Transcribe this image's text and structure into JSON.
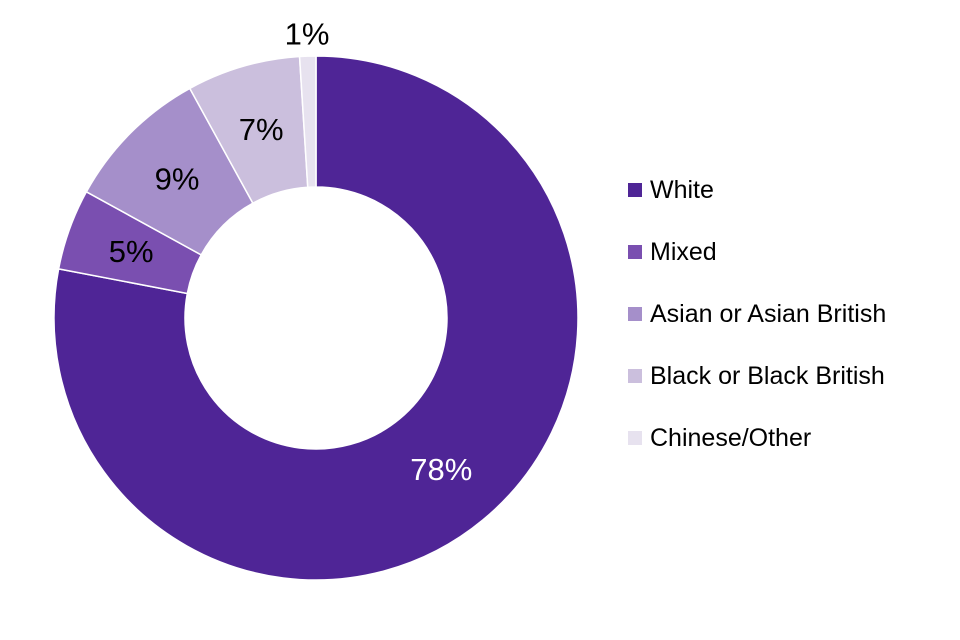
{
  "chart_data": {
    "type": "pie",
    "donut": true,
    "title": "",
    "categories": [
      "White",
      "Mixed",
      "Asian or Asian British",
      "Black or Black British",
      "Chinese/Other"
    ],
    "values": [
      78,
      5,
      9,
      7,
      1
    ],
    "labels": [
      "78%",
      "5%",
      "9%",
      "7%",
      "1%"
    ],
    "colors": [
      "#4f2596",
      "#7a4fb0",
      "#a58fca",
      "#cbbfdd",
      "#e7e2ef"
    ],
    "label_colors": [
      "#ffffff",
      "#000000",
      "#000000",
      "#000000",
      "#000000"
    ],
    "legend_position": "right"
  }
}
